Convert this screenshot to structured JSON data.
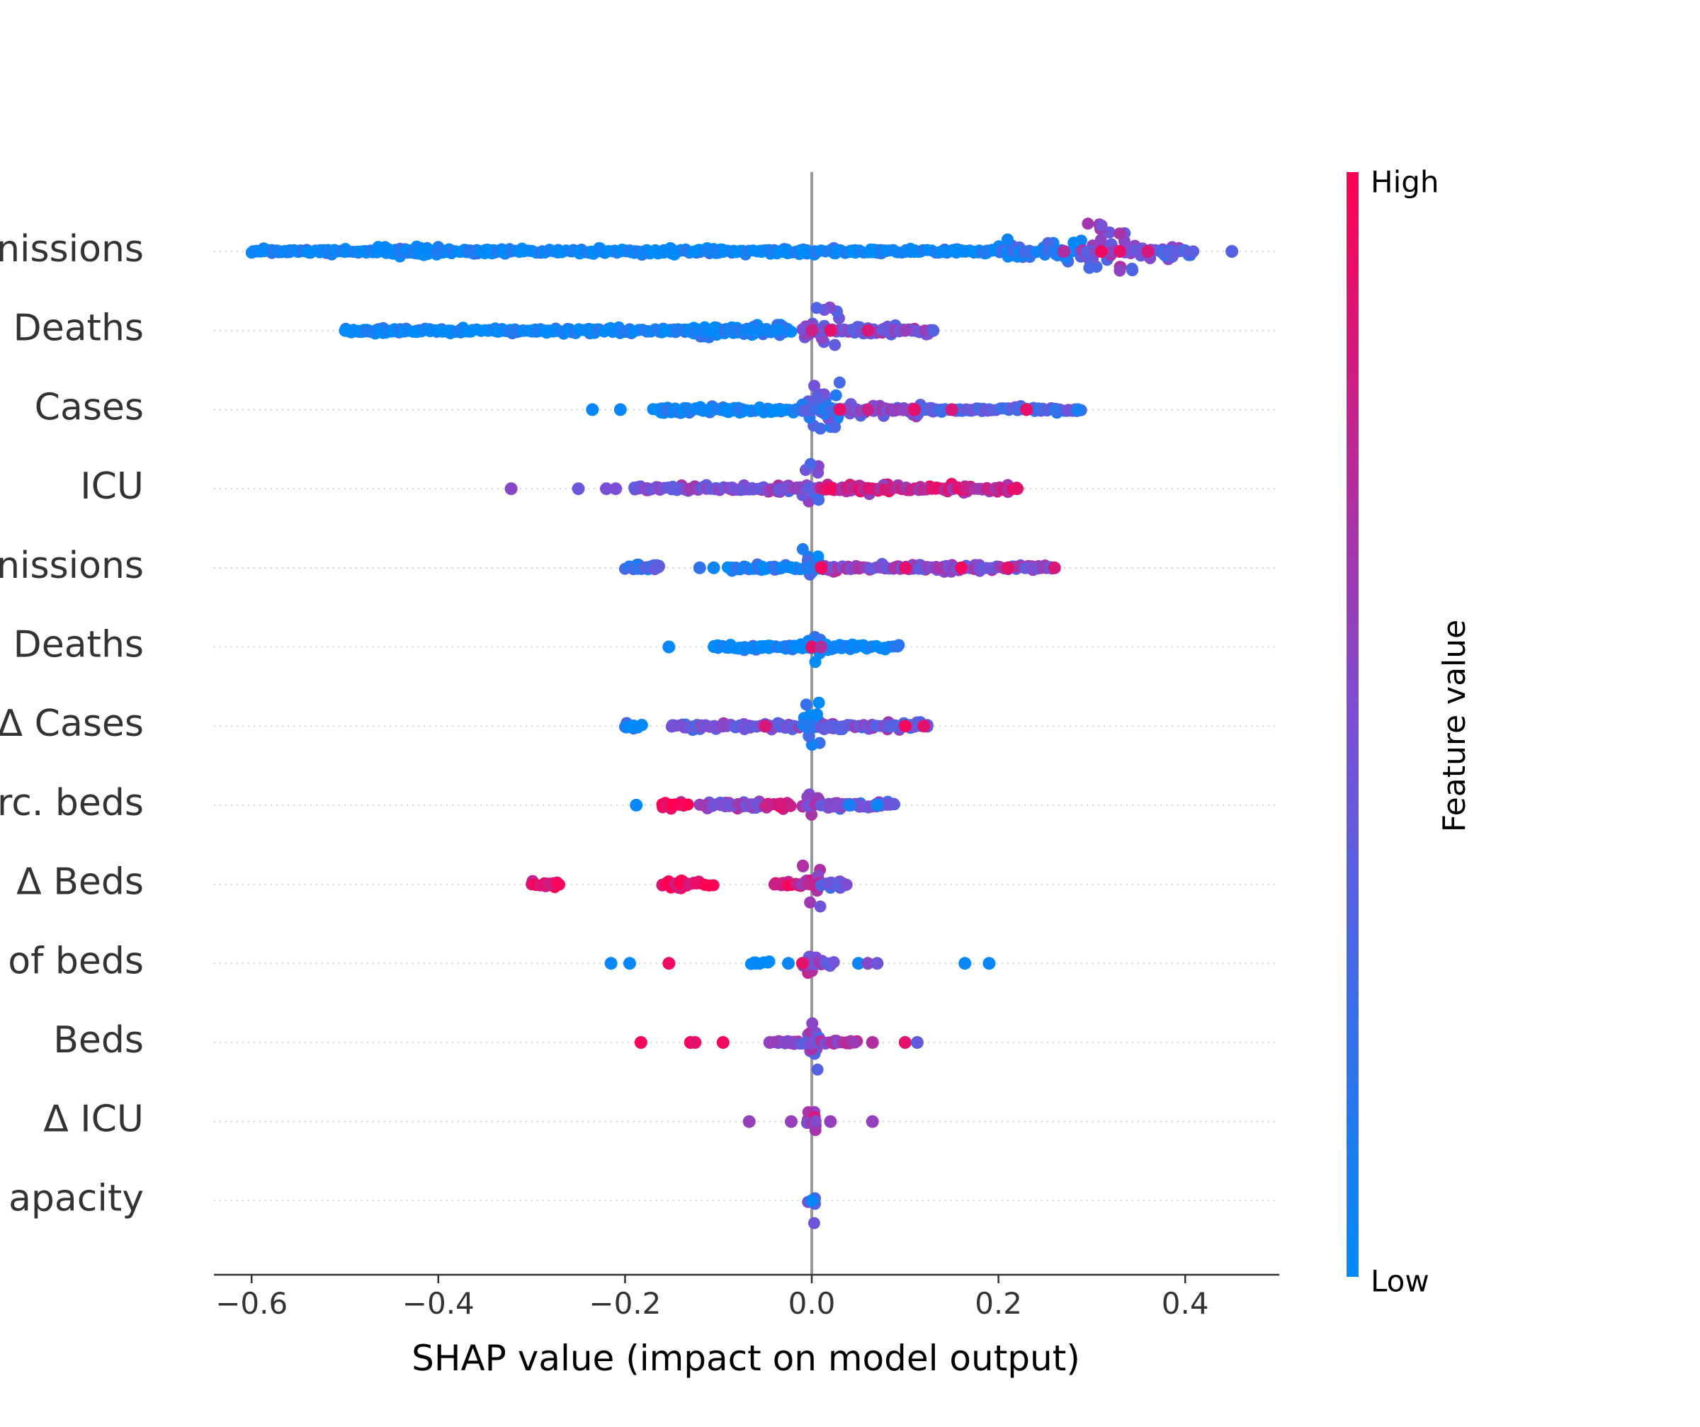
{
  "chart_data": {
    "type": "scatter",
    "subtype": "shap-beeswarm",
    "title": "",
    "xlabel": "SHAP value (impact on model output)",
    "ylabel": "",
    "xlim": [
      -0.64,
      0.5
    ],
    "xticks": [
      {
        "value": -0.6,
        "label": "−0.6"
      },
      {
        "value": -0.4,
        "label": "−0.4"
      },
      {
        "value": -0.2,
        "label": "−0.2"
      },
      {
        "value": 0.0,
        "label": "0.0"
      },
      {
        "value": 0.2,
        "label": "0.2"
      },
      {
        "value": 0.4,
        "label": "0.4"
      }
    ],
    "grid": false,
    "colorbar": {
      "label": "Feature value",
      "high_label": "High",
      "low_label": "Low",
      "low_color": "#008bfb",
      "mid_color": "#7a4fd6",
      "high_color": "#ff0052"
    },
    "zero_line_color": "#999999",
    "features": [
      {
        "label": "nissions",
        "bands": [
          {
            "from": -0.6,
            "to": 0.24,
            "width": 0.18,
            "color": 0.03
          },
          {
            "from": -0.47,
            "to": -0.4,
            "width": 0.3,
            "color": 0.03
          },
          {
            "from": 0.2,
            "to": 0.29,
            "width": 0.45,
            "color": 0.15
          },
          {
            "from": 0.29,
            "to": 0.345,
            "width": 0.95,
            "color": 0.5
          },
          {
            "from": 0.345,
            "to": 0.41,
            "width": 0.35,
            "color": 0.4
          }
        ],
        "points": [
          [
            0.45,
            0.35
          ],
          [
            0.1,
            0.05
          ],
          [
            0.27,
            0.7
          ],
          [
            0.33,
            0.9
          ],
          [
            0.31,
            0.95
          ],
          [
            0.36,
            0.85
          ]
        ]
      },
      {
        "label": "Deaths",
        "bands": [
          {
            "from": -0.5,
            "to": -0.02,
            "width": 0.18,
            "color": 0.03
          },
          {
            "from": -0.13,
            "to": -0.03,
            "width": 0.3,
            "color": 0.05
          },
          {
            "from": -0.01,
            "to": 0.03,
            "width": 0.95,
            "color": 0.45
          },
          {
            "from": 0.03,
            "to": 0.13,
            "width": 0.25,
            "color": 0.5
          }
        ],
        "points": [
          [
            -0.055,
            0.05
          ],
          [
            0.0,
            0.8
          ],
          [
            0.02,
            0.9
          ],
          [
            0.06,
            0.85
          ],
          [
            0.1,
            0.6
          ],
          [
            0.13,
            0.35
          ]
        ]
      },
      {
        "label": "Cases",
        "bands": [
          {
            "from": -0.17,
            "to": -0.01,
            "width": 0.2,
            "color": 0.03
          },
          {
            "from": -0.01,
            "to": 0.03,
            "width": 1.0,
            "color": 0.25
          },
          {
            "from": 0.03,
            "to": 0.12,
            "width": 0.3,
            "color": 0.55
          },
          {
            "from": 0.12,
            "to": 0.29,
            "width": 0.18,
            "color": 0.35
          }
        ],
        "points": [
          [
            -0.235,
            0.03
          ],
          [
            -0.205,
            0.03
          ],
          [
            0.03,
            0.9
          ],
          [
            0.06,
            0.8
          ],
          [
            0.11,
            0.9
          ],
          [
            0.15,
            0.85
          ],
          [
            0.23,
            0.9
          ],
          [
            0.26,
            0.2
          ],
          [
            0.285,
            0.1
          ]
        ]
      },
      {
        "label": "ICU",
        "bands": [
          {
            "from": -0.19,
            "to": -0.01,
            "width": 0.2,
            "color": 0.5
          },
          {
            "from": -0.01,
            "to": 0.01,
            "width": 0.9,
            "color": 0.45
          },
          {
            "from": 0.01,
            "to": 0.22,
            "width": 0.25,
            "color": 0.78
          }
        ],
        "points": [
          [
            -0.322,
            0.55
          ],
          [
            -0.25,
            0.45
          ],
          [
            -0.22,
            0.5
          ],
          [
            -0.21,
            0.5
          ],
          [
            0.22,
            0.9
          ],
          [
            0.02,
            0.95
          ]
        ]
      },
      {
        "label": "nissions",
        "bands": [
          {
            "from": -0.2,
            "to": -0.16,
            "width": 0.2,
            "color": 0.3
          },
          {
            "from": -0.09,
            "to": -0.01,
            "width": 0.2,
            "color": 0.08
          },
          {
            "from": -0.01,
            "to": 0.01,
            "width": 0.8,
            "color": 0.1
          },
          {
            "from": 0.01,
            "to": 0.26,
            "width": 0.2,
            "color": 0.55
          }
        ],
        "points": [
          [
            -0.12,
            0.2
          ],
          [
            -0.105,
            0.05
          ],
          [
            0.01,
            0.95
          ],
          [
            0.1,
            0.9
          ],
          [
            0.16,
            0.95
          ],
          [
            0.21,
            0.9
          ],
          [
            0.26,
            0.85
          ]
        ]
      },
      {
        "label": "Deaths",
        "bands": [
          {
            "from": -0.105,
            "to": -0.01,
            "width": 0.18,
            "color": 0.03
          },
          {
            "from": -0.01,
            "to": 0.01,
            "width": 0.7,
            "color": 0.1
          },
          {
            "from": 0.01,
            "to": 0.095,
            "width": 0.18,
            "color": 0.03
          }
        ],
        "points": [
          [
            -0.153,
            0.03
          ],
          [
            0.0,
            0.9
          ],
          [
            0.01,
            0.7
          ]
        ]
      },
      {
        "label": "Δ Cases",
        "bands": [
          {
            "from": -0.2,
            "to": -0.18,
            "width": 0.2,
            "color": 0.05
          },
          {
            "from": -0.15,
            "to": -0.01,
            "width": 0.2,
            "color": 0.45
          },
          {
            "from": -0.01,
            "to": 0.01,
            "width": 0.9,
            "color": 0.1
          },
          {
            "from": 0.01,
            "to": 0.125,
            "width": 0.2,
            "color": 0.45
          }
        ],
        "points": [
          [
            -0.095,
            0.55
          ],
          [
            -0.05,
            0.85
          ],
          [
            0.1,
            0.95
          ],
          [
            0.12,
            0.9
          ]
        ]
      },
      {
        "label": "rc. beds",
        "bands": [
          {
            "from": -0.16,
            "to": -0.13,
            "width": 0.22,
            "color": 0.95
          },
          {
            "from": -0.12,
            "to": -0.05,
            "width": 0.2,
            "color": 0.5
          },
          {
            "from": -0.05,
            "to": -0.02,
            "width": 0.2,
            "color": 0.9
          },
          {
            "from": -0.01,
            "to": 0.01,
            "width": 0.65,
            "color": 0.55
          },
          {
            "from": 0.01,
            "to": 0.09,
            "width": 0.2,
            "color": 0.45
          }
        ],
        "points": [
          [
            -0.188,
            0.03
          ],
          [
            0.07,
            0.05
          ],
          [
            0.04,
            0.1
          ]
        ]
      },
      {
        "label": "Δ Beds",
        "bands": [
          {
            "from": -0.3,
            "to": -0.27,
            "width": 0.22,
            "color": 0.95
          },
          {
            "from": -0.16,
            "to": -0.105,
            "width": 0.25,
            "color": 0.95
          },
          {
            "from": -0.04,
            "to": -0.01,
            "width": 0.2,
            "color": 0.9
          },
          {
            "from": -0.01,
            "to": 0.01,
            "width": 0.85,
            "color": 0.65
          },
          {
            "from": 0.01,
            "to": 0.04,
            "width": 0.2,
            "color": 0.45
          }
        ],
        "points": []
      },
      {
        "label": "of beds",
        "bands": [
          {
            "from": -0.065,
            "to": -0.045,
            "width": 0.15,
            "color": 0.05
          },
          {
            "from": -0.01,
            "to": 0.01,
            "width": 0.65,
            "color": 0.6
          },
          {
            "from": 0.01,
            "to": 0.025,
            "width": 0.2,
            "color": 0.5
          }
        ],
        "points": [
          [
            -0.215,
            0.03
          ],
          [
            -0.195,
            0.03
          ],
          [
            -0.153,
            0.95
          ],
          [
            -0.025,
            0.05
          ],
          [
            -0.01,
            0.9
          ],
          [
            0.05,
            0.05
          ],
          [
            0.06,
            0.55
          ],
          [
            0.07,
            0.45
          ],
          [
            0.164,
            0.03
          ],
          [
            0.19,
            0.03
          ]
        ]
      },
      {
        "label": "Beds",
        "bands": [
          {
            "from": -0.04,
            "to": -0.01,
            "width": 0.15,
            "color": 0.6
          },
          {
            "from": -0.01,
            "to": 0.01,
            "width": 0.95,
            "color": 0.5
          },
          {
            "from": 0.01,
            "to": 0.05,
            "width": 0.15,
            "color": 0.65
          }
        ],
        "points": [
          [
            -0.183,
            0.95
          ],
          [
            -0.13,
            0.95
          ],
          [
            -0.125,
            0.9
          ],
          [
            -0.095,
            0.95
          ],
          [
            -0.045,
            0.6
          ],
          [
            0.065,
            0.7
          ],
          [
            0.1,
            0.9
          ],
          [
            0.113,
            0.4
          ]
        ]
      },
      {
        "label": "Δ ICU",
        "bands": [
          {
            "from": -0.005,
            "to": 0.005,
            "width": 0.85,
            "color": 0.65
          }
        ],
        "points": [
          [
            -0.067,
            0.6
          ],
          [
            -0.022,
            0.6
          ],
          [
            0.02,
            0.6
          ],
          [
            0.065,
            0.6
          ]
        ]
      },
      {
        "label": "apacity",
        "bands": [
          {
            "from": -0.004,
            "to": 0.004,
            "width": 0.85,
            "color": 0.5
          }
        ],
        "points": [
          [
            0.0,
            0.95
          ],
          [
            0.0,
            0.03
          ]
        ]
      }
    ]
  }
}
